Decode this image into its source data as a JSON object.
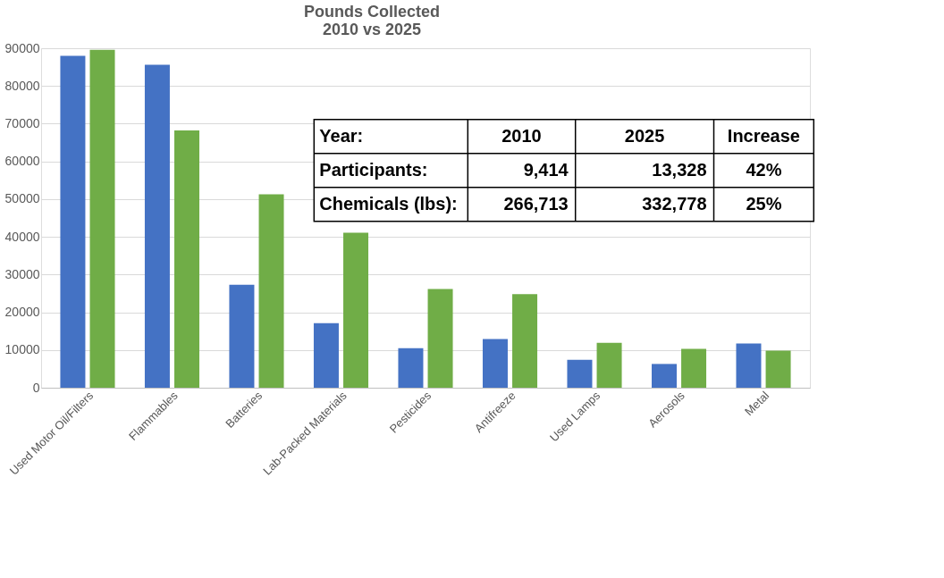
{
  "chart_data": {
    "type": "bar",
    "title": "Pounds Collected\n2010 vs 2025",
    "categories": [
      "Used Motor Oil/Filters",
      "Flammables",
      "Batteries",
      "Lab-Packed Materials",
      "Pesticides",
      "Antifreeze",
      "Used Lamps",
      "Aerosols",
      "Metal"
    ],
    "series": [
      {
        "color": "#4472c4",
        "values": [
          88000,
          85600,
          27300,
          17100,
          10500,
          12900,
          7400,
          6300,
          11700
        ]
      },
      {
        "color": "#70ad47",
        "values": [
          89600,
          68200,
          51300,
          41100,
          26200,
          24800,
          11900,
          10300,
          9800
        ]
      }
    ],
    "ylim": [
      0,
      90000
    ],
    "yticks": [
      0,
      10000,
      20000,
      30000,
      40000,
      50000,
      60000,
      70000,
      80000,
      90000
    ],
    "grid": "y",
    "legend": false,
    "annotations": [
      "Year:",
      "2010",
      "2025",
      "Increase",
      "Participants:",
      "9,414",
      "13,328",
      "42%",
      "Chemicals (lbs):",
      "266,713",
      "332,778",
      "25%"
    ]
  }
}
